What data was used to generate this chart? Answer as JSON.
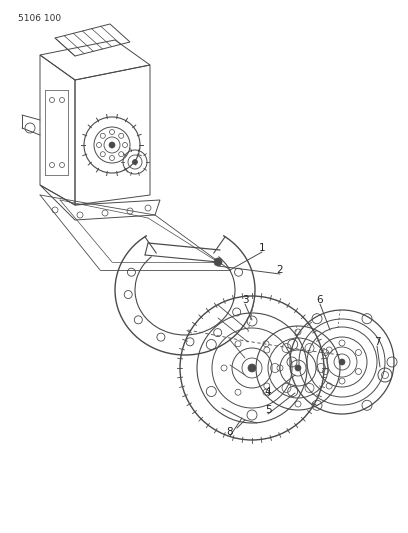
{
  "title_label": "5106 100",
  "bg_color": "#ffffff",
  "line_color": "#4a4a4a",
  "label_color": "#222222",
  "fig_width": 4.08,
  "fig_height": 5.33,
  "dpi": 100
}
